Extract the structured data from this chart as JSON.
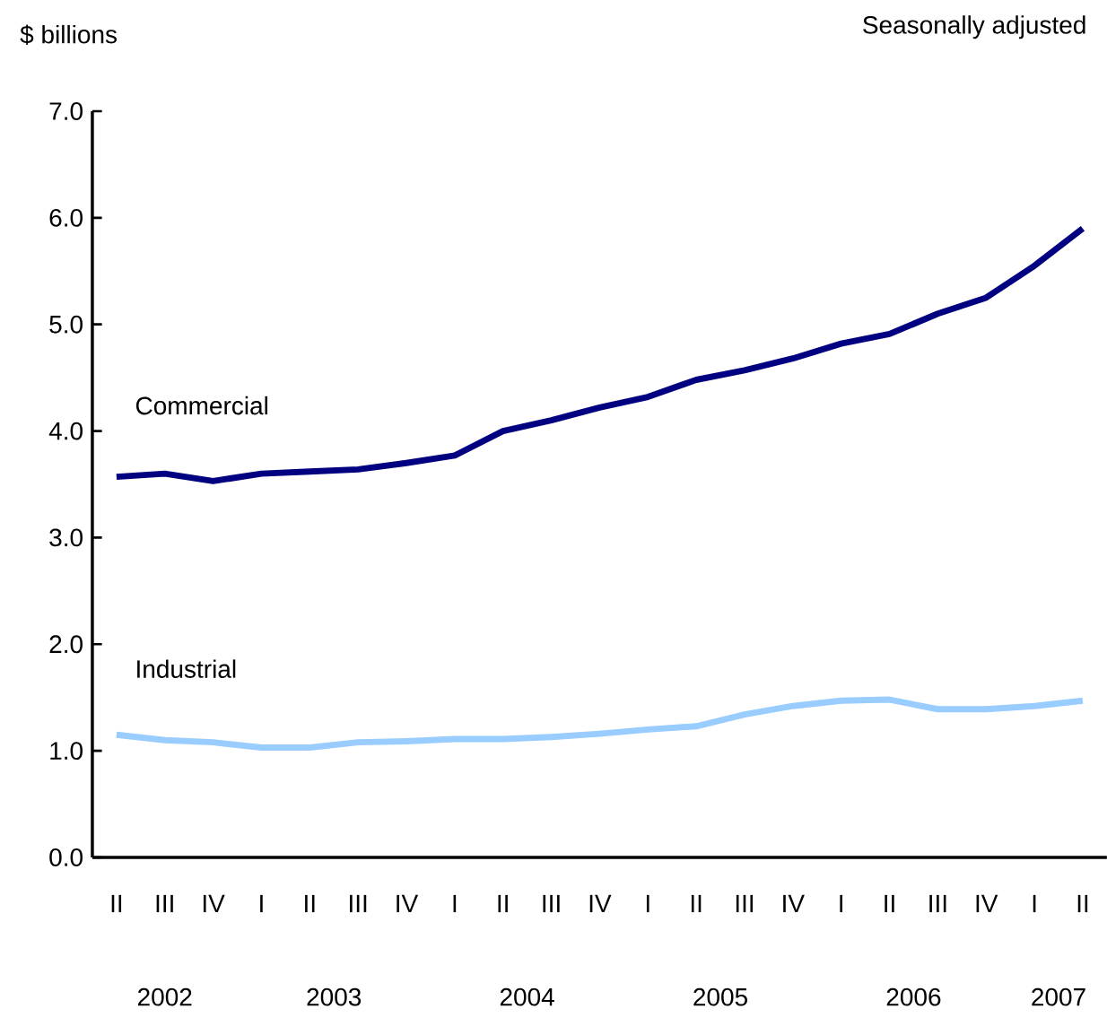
{
  "chart_data": {
    "type": "line",
    "ylabel": "$ billions",
    "subtitle": "Seasonally adjusted",
    "categories": [
      "II",
      "III",
      "IV",
      "I",
      "II",
      "III",
      "IV",
      "I",
      "II",
      "III",
      "IV",
      "I",
      "II",
      "III",
      "IV",
      "I",
      "II",
      "III",
      "IV",
      "I",
      "II"
    ],
    "annotations": [
      "2002",
      "2003",
      "2004",
      "2005",
      "2006",
      "2007"
    ],
    "ylim": [
      0,
      7
    ],
    "yticks": [
      {
        "value": 0,
        "label": "0.0"
      },
      {
        "value": 1,
        "label": "1.0"
      },
      {
        "value": 2,
        "label": "2.0"
      },
      {
        "value": 3,
        "label": "3.0"
      },
      {
        "value": 4,
        "label": "4.0"
      },
      {
        "value": 5,
        "label": "5.0"
      },
      {
        "value": 6,
        "label": "6.0"
      },
      {
        "value": 7,
        "label": "7.0"
      }
    ],
    "grid": false,
    "legend": false,
    "marker": "none",
    "line_style": "solid",
    "series": [
      {
        "name": "Commercial",
        "color": "#000080",
        "values": [
          3.57,
          3.6,
          3.53,
          3.6,
          3.62,
          3.64,
          3.7,
          3.77,
          4.0,
          4.1,
          4.22,
          4.32,
          4.48,
          4.57,
          4.68,
          4.82,
          4.91,
          5.1,
          5.25,
          5.55,
          5.9
        ]
      },
      {
        "name": "Industrial",
        "color": "#99ccff",
        "values": [
          1.15,
          1.1,
          1.08,
          1.03,
          1.03,
          1.08,
          1.09,
          1.11,
          1.11,
          1.13,
          1.16,
          1.2,
          1.23,
          1.34,
          1.42,
          1.47,
          1.48,
          1.39,
          1.39,
          1.42,
          1.47
        ]
      }
    ]
  }
}
